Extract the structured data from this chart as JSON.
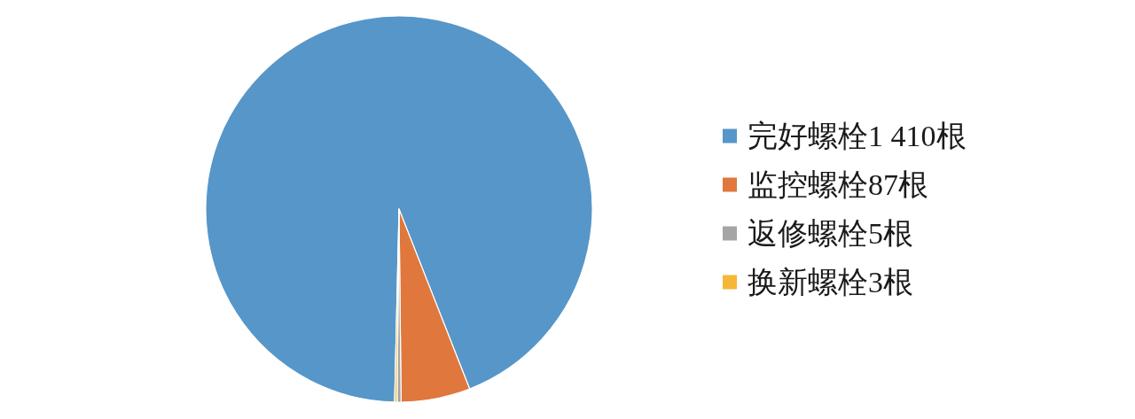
{
  "chart_data": {
    "type": "pie",
    "categories": [
      "完好螺栓1 410根",
      "监控螺栓87根",
      "返修螺栓5根",
      "换新螺栓3根"
    ],
    "values": [
      1410,
      87,
      5,
      3
    ],
    "colors": [
      "#5796c8",
      "#e0773d",
      "#a5a5a5",
      "#f5b735"
    ],
    "legend": "right"
  }
}
